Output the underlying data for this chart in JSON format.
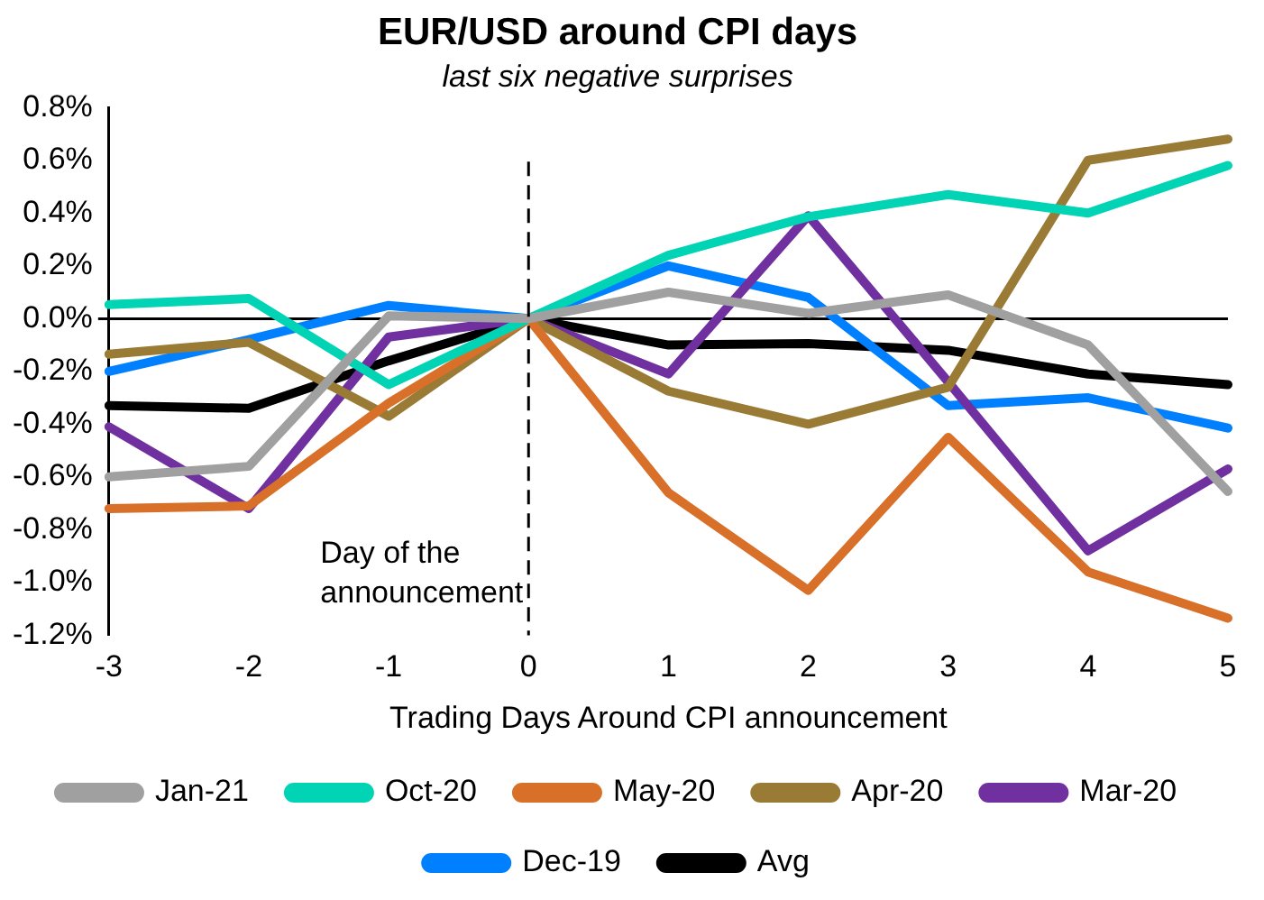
{
  "chart_data": {
    "type": "line",
    "title": "EUR/USD around CPI days",
    "subtitle": "last six negative surprises",
    "xlabel": "Trading Days Around CPI announcement",
    "categories": [
      "-3",
      "-2",
      "-1",
      "0",
      "1",
      "2",
      "3",
      "4",
      "5"
    ],
    "series": [
      {
        "name": "Jan-21",
        "color": "#a0a0a0",
        "values": [
          -0.6,
          -0.56,
          0.01,
          0,
          0.1,
          0.02,
          0.09,
          -0.1,
          -0.655
        ]
      },
      {
        "name": "Oct-20",
        "color": "#00d4b4",
        "values": [
          0.053,
          0.076,
          -0.25,
          0,
          0.24,
          0.386,
          0.47,
          0.4,
          0.58
        ]
      },
      {
        "name": "May-20",
        "color": "#d8702a",
        "values": [
          -0.72,
          -0.71,
          -0.32,
          0,
          -0.66,
          -1.03,
          -0.45,
          -0.96,
          -1.135
        ]
      },
      {
        "name": "Apr-20",
        "color": "#9a7b35",
        "values": [
          -0.135,
          -0.09,
          -0.37,
          0,
          -0.275,
          -0.4,
          -0.26,
          0.6,
          0.68
        ]
      },
      {
        "name": "Mar-20",
        "color": "#7030a0",
        "values": [
          -0.41,
          -0.72,
          -0.07,
          0,
          -0.21,
          0.39,
          -0.24,
          -0.88,
          -0.57
        ]
      },
      {
        "name": "Dec-19",
        "color": "#0080ff",
        "values": [
          -0.2,
          -0.08,
          0.05,
          0,
          0.2,
          0.08,
          -0.33,
          -0.3,
          -0.415
        ]
      },
      {
        "name": "Avg",
        "color": "#000000",
        "values": [
          -0.33,
          -0.34,
          -0.16,
          0,
          -0.1,
          -0.095,
          -0.12,
          -0.21,
          -0.25
        ]
      }
    ],
    "ylim": [
      -1.2,
      0.8
    ],
    "yticks": [
      {
        "value": -1.2,
        "label": "-1.2%"
      },
      {
        "value": -1.0,
        "label": "-1.0%"
      },
      {
        "value": -0.8,
        "label": "-0.8%"
      },
      {
        "value": -0.6,
        "label": "-0.6%"
      },
      {
        "value": -0.4,
        "label": "-0.4%"
      },
      {
        "value": -0.2,
        "label": "-0.2%"
      },
      {
        "value": 0,
        "label": "0.0%"
      },
      {
        "value": 0.2,
        "label": "0.2%"
      },
      {
        "value": 0.4,
        "label": "0.4%"
      },
      {
        "value": 0.6,
        "label": "0.6%"
      },
      {
        "value": 0.8,
        "label": "0.8%"
      }
    ],
    "ref_lines": [
      {
        "axis": "x",
        "value": "0",
        "label": "Day of the announcement",
        "line_style": "dashed"
      }
    ],
    "grid": false,
    "legend": "bottom",
    "marker": "none",
    "line_style": "solid"
  }
}
